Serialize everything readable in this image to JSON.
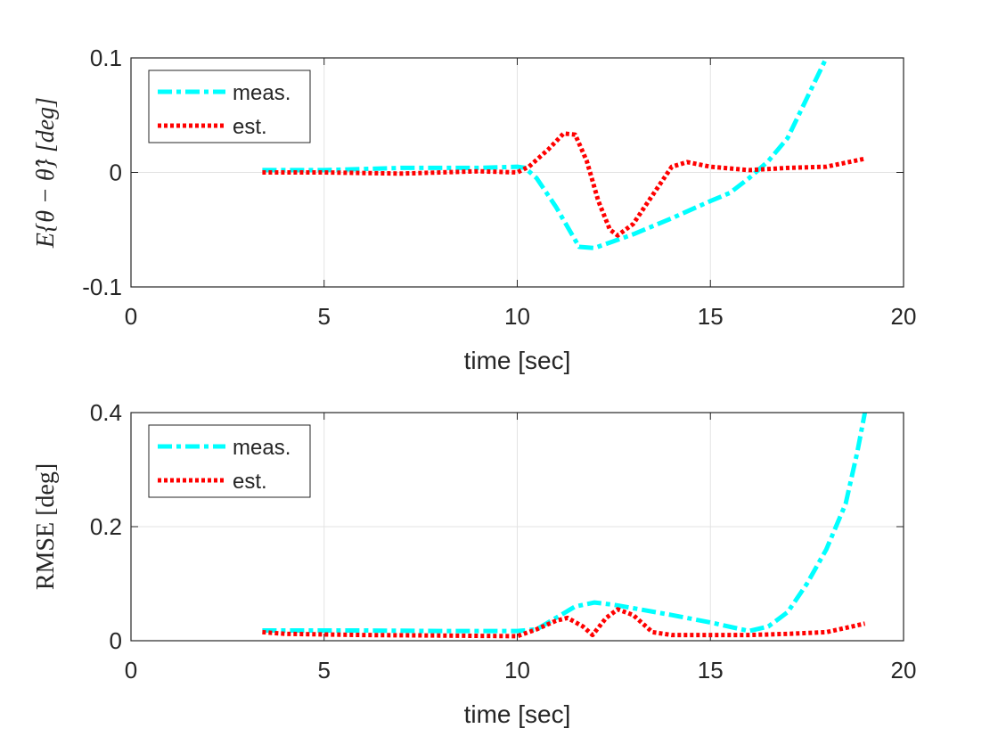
{
  "chart_data": [
    {
      "type": "line",
      "xlabel": "time [sec]",
      "ylabel": "E{θ − θ̂} [deg]",
      "xlim": [
        0,
        20
      ],
      "ylim": [
        -0.1,
        0.1
      ],
      "xticks": [
        "0",
        "5",
        "10",
        "15",
        "20"
      ],
      "xtick_values": [
        0,
        5,
        10,
        15,
        20
      ],
      "yticks": [
        "-0.1",
        "0",
        "0.1"
      ],
      "ytick_values": [
        -0.1,
        0,
        0.1
      ],
      "grid": true,
      "legend_position": "top-left",
      "series": [
        {
          "name": "meas.",
          "color": "#00FFFF",
          "style": "dashdot",
          "x": [
            3.4,
            5,
            7,
            9,
            10,
            10.2,
            10.5,
            11,
            11.6,
            12,
            12.5,
            13,
            14,
            15,
            15.5,
            16,
            16.5,
            17,
            17.5,
            18
          ],
          "y": [
            0.002,
            0.002,
            0.004,
            0.004,
            0.005,
            0.004,
            -0.005,
            -0.03,
            -0.065,
            -0.066,
            -0.06,
            -0.054,
            -0.04,
            -0.025,
            -0.018,
            -0.005,
            0.01,
            0.03,
            0.065,
            0.1
          ]
        },
        {
          "name": "est.",
          "color": "#FF0000",
          "style": "dotted",
          "x": [
            3.4,
            5,
            7,
            9,
            10,
            10.3,
            10.8,
            11.2,
            11.5,
            11.8,
            12.1,
            12.4,
            12.6,
            13,
            13.5,
            14,
            14.4,
            15,
            16,
            17,
            18,
            19
          ],
          "y": [
            0,
            0,
            -0.001,
            0.001,
            0,
            0.005,
            0.02,
            0.034,
            0.033,
            0.01,
            -0.025,
            -0.05,
            -0.055,
            -0.045,
            -0.02,
            0.005,
            0.009,
            0.005,
            0.002,
            0.004,
            0.005,
            0.012
          ]
        }
      ]
    },
    {
      "type": "line",
      "xlabel": "time [sec]",
      "ylabel": "RMSE [deg]",
      "xlim": [
        0,
        20
      ],
      "ylim": [
        0,
        0.4
      ],
      "xticks": [
        "0",
        "5",
        "10",
        "15",
        "20"
      ],
      "xtick_values": [
        0,
        5,
        10,
        15,
        20
      ],
      "yticks": [
        "0",
        "0.2",
        "0.4"
      ],
      "ytick_values": [
        0,
        0.2,
        0.4
      ],
      "grid": true,
      "legend_position": "top-left",
      "series": [
        {
          "name": "meas.",
          "color": "#00FFFF",
          "style": "dashdot",
          "x": [
            3.4,
            6,
            8,
            10,
            10.5,
            11,
            11.5,
            12,
            12.5,
            13,
            14,
            15,
            16,
            16.5,
            17,
            17.5,
            18,
            18.5,
            18.8,
            19
          ],
          "y": [
            0.018,
            0.018,
            0.017,
            0.017,
            0.02,
            0.04,
            0.06,
            0.067,
            0.063,
            0.057,
            0.045,
            0.032,
            0.017,
            0.025,
            0.05,
            0.1,
            0.16,
            0.24,
            0.33,
            0.4
          ]
        },
        {
          "name": "est.",
          "color": "#FF0000",
          "style": "dotted",
          "x": [
            3.4,
            4,
            6,
            8,
            10,
            10.5,
            11,
            11.3,
            11.7,
            11.95,
            12.3,
            12.6,
            13,
            13.5,
            14,
            16,
            17,
            18,
            19
          ],
          "y": [
            0.015,
            0.012,
            0.01,
            0.009,
            0.008,
            0.02,
            0.035,
            0.04,
            0.025,
            0.01,
            0.04,
            0.055,
            0.045,
            0.015,
            0.01,
            0.01,
            0.012,
            0.015,
            0.03
          ]
        }
      ]
    }
  ]
}
